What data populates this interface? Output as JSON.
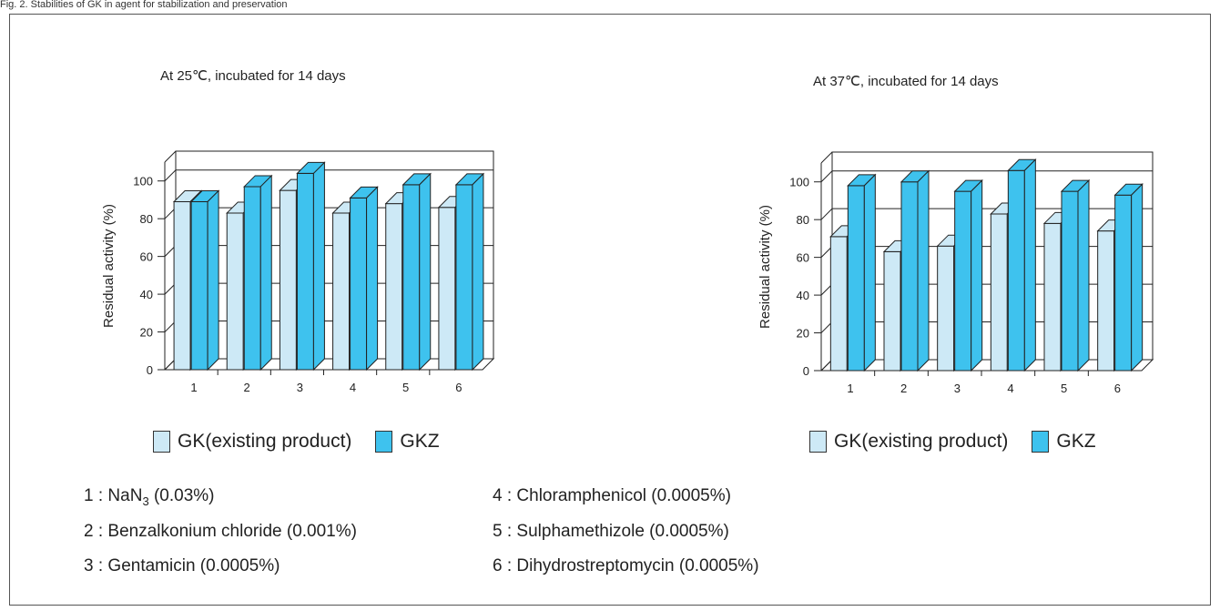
{
  "caption": "Fig. 2. Stabilities of GK in agent for stabilization and preservation",
  "colors": {
    "gk": "#cde9f6",
    "gkz": "#3ec2ee",
    "outline": "#222222"
  },
  "legend": {
    "gk_label": "GK(existing product)",
    "gkz_label": "GKZ"
  },
  "notes": [
    {
      "num": "1",
      "sep": ":",
      "text": "NaN",
      "sub": "3",
      "rest": " (0.03%)"
    },
    {
      "num": "2",
      "sep": ":",
      "text": "Benzalkonium chloride (0.001%)",
      "sub": "",
      "rest": ""
    },
    {
      "num": "3",
      "sep": ":",
      "text": "Gentamicin (0.0005%)",
      "sub": "",
      "rest": ""
    },
    {
      "num": "4",
      "sep": ":",
      "text": "Chloramphenicol (0.0005%)",
      "sub": "",
      "rest": ""
    },
    {
      "num": "5",
      "sep": ":",
      "text": "Sulphamethizole (0.0005%)",
      "sub": "",
      "rest": ""
    },
    {
      "num": "6",
      "sep": ":",
      "text": "Dihydrostreptomycin (0.0005%)",
      "sub": "",
      "rest": ""
    }
  ],
  "chart_data": [
    {
      "type": "bar",
      "title": "At 25℃, incubated for 14 days",
      "ylabel": "Residual activity (%)",
      "xlabel": "",
      "categories": [
        "1",
        "2",
        "3",
        "4",
        "5",
        "6"
      ],
      "yticks": [
        "0",
        "20",
        "40",
        "60",
        "80",
        "100"
      ],
      "ylim": [
        0,
        110
      ],
      "grid": true,
      "series": [
        {
          "name": "GK(existing product)",
          "values": [
            89,
            83,
            95,
            83,
            88,
            86
          ]
        },
        {
          "name": "GKZ",
          "values": [
            89,
            97,
            104,
            91,
            98,
            98
          ]
        }
      ]
    },
    {
      "type": "bar",
      "title": "At 37℃, incubated for 14 days",
      "ylabel": "Residual activity (%)",
      "xlabel": "",
      "categories": [
        "1",
        "2",
        "3",
        "4",
        "5",
        "6"
      ],
      "yticks": [
        "0",
        "20",
        "40",
        "60",
        "80",
        "100"
      ],
      "ylim": [
        0,
        110
      ],
      "grid": true,
      "series": [
        {
          "name": "GK(existing product)",
          "values": [
            71,
            63,
            66,
            83,
            78,
            74
          ]
        },
        {
          "name": "GKZ",
          "values": [
            98,
            100,
            95,
            106,
            95,
            93
          ]
        }
      ]
    }
  ]
}
